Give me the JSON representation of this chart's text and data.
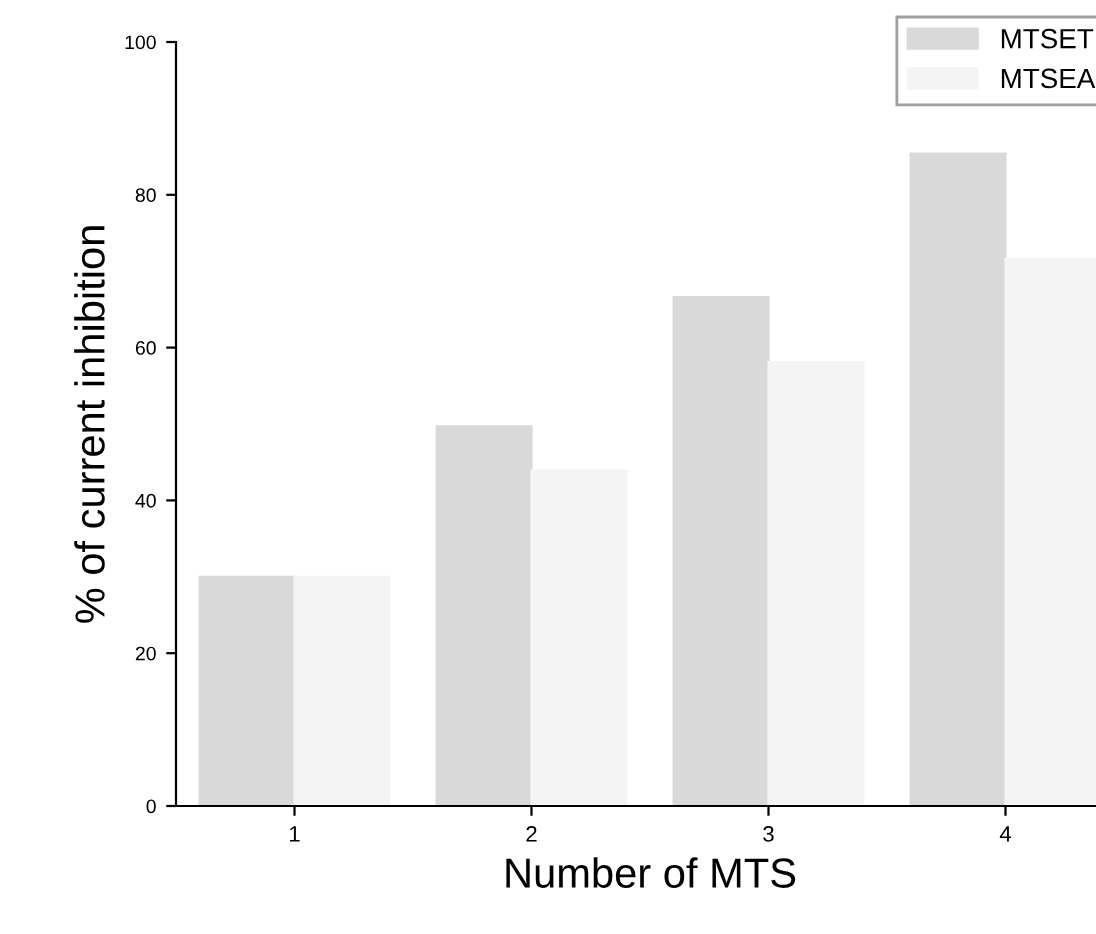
{
  "chart_data": {
    "type": "bar",
    "xlabel": "Number of MTS",
    "ylabel": "% of current inhibition",
    "categories": [
      "1",
      "2",
      "3",
      "4"
    ],
    "series": [
      {
        "name": "MTSET",
        "color": "#d9d9d9",
        "values": [
          30,
          49.7,
          66.6,
          85.4
        ]
      },
      {
        "name": "MTSEA",
        "color": "#f4f4f4",
        "values": [
          30,
          43.9,
          58.1,
          71.6
        ]
      }
    ],
    "ylim": [
      0,
      100
    ],
    "yticks": [
      0,
      20,
      40,
      60,
      80,
      100
    ],
    "grid": false,
    "legend": "top right"
  }
}
